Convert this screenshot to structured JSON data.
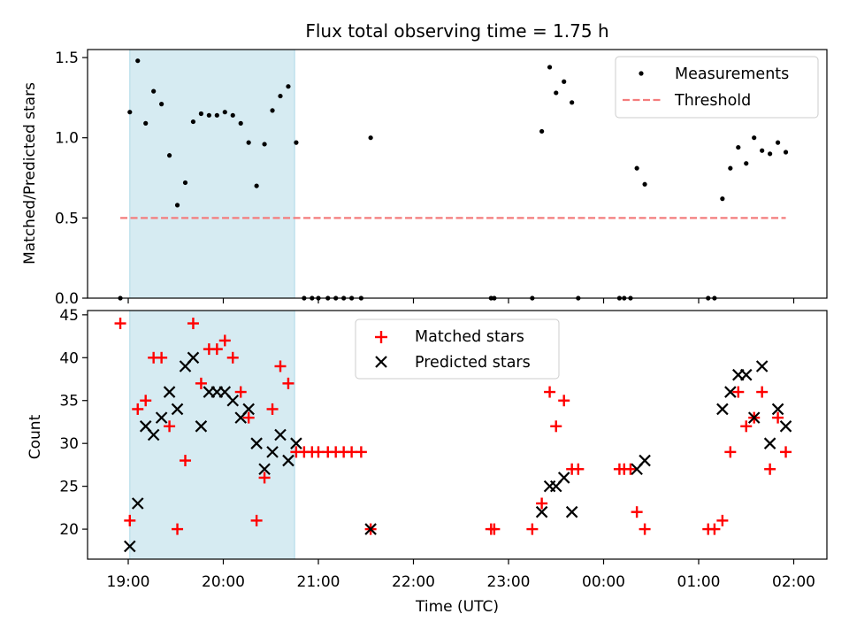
{
  "chart_data": [
    {
      "type": "scatter",
      "title": "Flux total observing time = 1.75 h",
      "ylabel": "Matched/Predicted stars",
      "xlabel": "",
      "ylim": [
        0,
        1.55
      ],
      "yticks": [
        "0.0",
        "0.5",
        "1.0",
        "1.5"
      ],
      "shaded_interval": [
        "19:01",
        "20:45"
      ],
      "legend_position": "top-right",
      "series": [
        {
          "name": "Measurements",
          "style": "dot",
          "color": "#000000",
          "points": [
            [
              "18:55",
              0.0
            ],
            [
              "19:01",
              1.16
            ],
            [
              "19:06",
              1.48
            ],
            [
              "19:11",
              1.09
            ],
            [
              "19:16",
              1.29
            ],
            [
              "19:21",
              1.21
            ],
            [
              "19:26",
              0.89
            ],
            [
              "19:31",
              0.58
            ],
            [
              "19:36",
              0.72
            ],
            [
              "19:41",
              1.1
            ],
            [
              "19:46",
              1.15
            ],
            [
              "19:51",
              1.14
            ],
            [
              "19:56",
              1.14
            ],
            [
              "20:01",
              1.16
            ],
            [
              "20:06",
              1.14
            ],
            [
              "20:11",
              1.09
            ],
            [
              "20:16",
              0.97
            ],
            [
              "20:21",
              0.7
            ],
            [
              "20:26",
              0.96
            ],
            [
              "20:31",
              1.17
            ],
            [
              "20:36",
              1.26
            ],
            [
              "20:41",
              1.32
            ],
            [
              "20:46",
              0.97
            ],
            [
              "20:51",
              0.0
            ],
            [
              "20:56",
              0.0
            ],
            [
              "21:00",
              0.0
            ],
            [
              "21:06",
              0.0
            ],
            [
              "21:11",
              0.0
            ],
            [
              "21:16",
              0.0
            ],
            [
              "21:21",
              0.0
            ],
            [
              "21:27",
              0.0
            ],
            [
              "21:33",
              1.0
            ],
            [
              "22:49",
              0.0
            ],
            [
              "22:51",
              0.0
            ],
            [
              "23:15",
              0.0
            ],
            [
              "23:21",
              1.04
            ],
            [
              "23:26",
              1.44
            ],
            [
              "23:30",
              1.28
            ],
            [
              "23:35",
              1.35
            ],
            [
              "23:40",
              1.22
            ],
            [
              "23:44",
              0.0
            ],
            [
              "00:10",
              0.0
            ],
            [
              "00:13",
              0.0
            ],
            [
              "00:17",
              0.0
            ],
            [
              "00:21",
              0.81
            ],
            [
              "00:26",
              0.71
            ],
            [
              "01:06",
              0.0
            ],
            [
              "01:10",
              0.0
            ],
            [
              "01:15",
              0.62
            ],
            [
              "01:20",
              0.81
            ],
            [
              "01:25",
              0.94
            ],
            [
              "01:30",
              0.84
            ],
            [
              "01:35",
              1.0
            ],
            [
              "01:40",
              0.92
            ],
            [
              "01:45",
              0.9
            ],
            [
              "01:50",
              0.97
            ],
            [
              "01:55",
              0.91
            ]
          ]
        },
        {
          "name": "Threshold",
          "style": "dashed",
          "color": "#f47c7c",
          "points": [
            [
              "18:55",
              0.5
            ],
            [
              "01:55",
              0.5
            ]
          ]
        }
      ]
    },
    {
      "type": "scatter",
      "title": "",
      "ylabel": "Count",
      "xlabel": "Time (UTC)",
      "ylim": [
        16.5,
        45.5
      ],
      "yticks": [
        "20",
        "25",
        "30",
        "35",
        "40",
        "45"
      ],
      "xticks": [
        "19:00",
        "20:00",
        "21:00",
        "22:00",
        "23:00",
        "00:00",
        "01:00",
        "02:00"
      ],
      "shaded_interval": [
        "19:01",
        "20:45"
      ],
      "legend_position": "top-center",
      "series": [
        {
          "name": "Matched stars",
          "style": "plus",
          "color": "#ff0000",
          "points": [
            [
              "18:55",
              44
            ],
            [
              "19:01",
              21
            ],
            [
              "19:06",
              34
            ],
            [
              "19:11",
              35
            ],
            [
              "19:16",
              40
            ],
            [
              "19:21",
              40
            ],
            [
              "19:26",
              32
            ],
            [
              "19:31",
              20
            ],
            [
              "19:36",
              28
            ],
            [
              "19:41",
              44
            ],
            [
              "19:46",
              37
            ],
            [
              "19:51",
              41
            ],
            [
              "19:56",
              41
            ],
            [
              "20:01",
              42
            ],
            [
              "20:06",
              40
            ],
            [
              "20:11",
              36
            ],
            [
              "20:16",
              33
            ],
            [
              "20:21",
              21
            ],
            [
              "20:26",
              26
            ],
            [
              "20:31",
              34
            ],
            [
              "20:36",
              39
            ],
            [
              "20:41",
              37
            ],
            [
              "20:46",
              29
            ],
            [
              "20:51",
              29
            ],
            [
              "20:56",
              29
            ],
            [
              "21:00",
              29
            ],
            [
              "21:06",
              29
            ],
            [
              "21:11",
              29
            ],
            [
              "21:16",
              29
            ],
            [
              "21:21",
              29
            ],
            [
              "21:27",
              29
            ],
            [
              "21:33",
              20
            ],
            [
              "22:49",
              20
            ],
            [
              "22:51",
              20
            ],
            [
              "23:15",
              20
            ],
            [
              "23:21",
              23
            ],
            [
              "23:26",
              36
            ],
            [
              "23:30",
              32
            ],
            [
              "23:35",
              35
            ],
            [
              "23:40",
              27
            ],
            [
              "23:44",
              27
            ],
            [
              "00:10",
              27
            ],
            [
              "00:13",
              27
            ],
            [
              "00:17",
              27
            ],
            [
              "00:21",
              22
            ],
            [
              "00:26",
              20
            ],
            [
              "01:06",
              20
            ],
            [
              "01:10",
              20
            ],
            [
              "01:15",
              21
            ],
            [
              "01:20",
              29
            ],
            [
              "01:25",
              36
            ],
            [
              "01:30",
              32
            ],
            [
              "01:35",
              33
            ],
            [
              "01:40",
              36
            ],
            [
              "01:45",
              27
            ],
            [
              "01:50",
              33
            ],
            [
              "01:55",
              29
            ]
          ]
        },
        {
          "name": "Predicted stars",
          "style": "x",
          "color": "#000000",
          "points": [
            [
              "19:01",
              18
            ],
            [
              "19:06",
              23
            ],
            [
              "19:11",
              32
            ],
            [
              "19:16",
              31
            ],
            [
              "19:21",
              33
            ],
            [
              "19:26",
              36
            ],
            [
              "19:31",
              34
            ],
            [
              "19:36",
              39
            ],
            [
              "19:41",
              40
            ],
            [
              "19:46",
              32
            ],
            [
              "19:51",
              36
            ],
            [
              "19:56",
              36
            ],
            [
              "20:01",
              36
            ],
            [
              "20:06",
              35
            ],
            [
              "20:11",
              33
            ],
            [
              "20:16",
              34
            ],
            [
              "20:21",
              30
            ],
            [
              "20:26",
              27
            ],
            [
              "20:31",
              29
            ],
            [
              "20:36",
              31
            ],
            [
              "20:41",
              28
            ],
            [
              "20:46",
              30
            ],
            [
              "21:33",
              20
            ],
            [
              "23:21",
              22
            ],
            [
              "23:26",
              25
            ],
            [
              "23:30",
              25
            ],
            [
              "23:35",
              26
            ],
            [
              "23:40",
              22
            ],
            [
              "00:21",
              27
            ],
            [
              "00:26",
              28
            ],
            [
              "01:15",
              34
            ],
            [
              "01:20",
              36
            ],
            [
              "01:25",
              38
            ],
            [
              "01:30",
              38
            ],
            [
              "01:35",
              33
            ],
            [
              "01:40",
              39
            ],
            [
              "01:45",
              30
            ],
            [
              "01:50",
              34
            ],
            [
              "01:55",
              32
            ]
          ]
        }
      ]
    }
  ]
}
